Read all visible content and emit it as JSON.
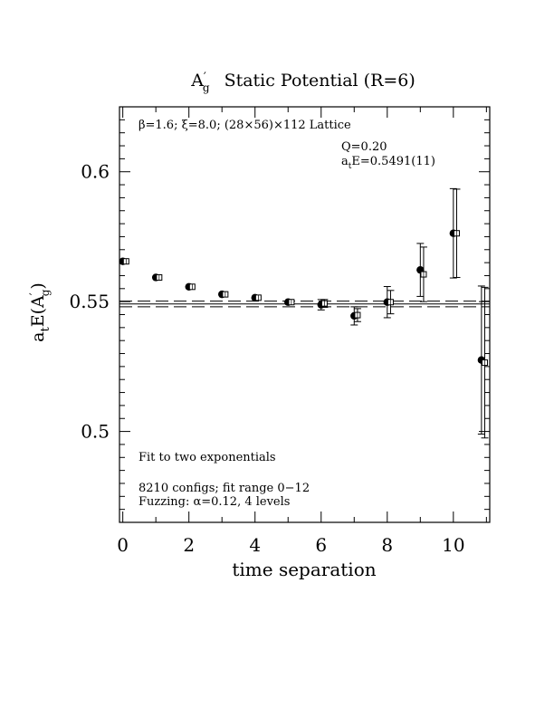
{
  "chart_data": {
    "type": "scatter",
    "title": {
      "prefix": "A",
      "prime": "′",
      "sub": "g",
      "suffix": "Static Potential (R=6)"
    },
    "xlabel": "time separation",
    "ylabel": {
      "a": "a",
      "a_sub": "t",
      "mid": "E(A",
      "prime": "′",
      "g_sub": "g",
      "close": ")"
    },
    "xlim": [
      -0.1,
      11.1
    ],
    "ylim": [
      0.465,
      0.625
    ],
    "x_ticks": [
      0,
      2,
      4,
      6,
      8,
      10
    ],
    "x_tick_labels": [
      "0",
      "2",
      "4",
      "6",
      "8",
      "10"
    ],
    "y_ticks": [
      0.5,
      0.55,
      0.6
    ],
    "y_tick_labels": [
      "0.5",
      "0.55",
      "0.6"
    ],
    "annotations": {
      "lattice": "β=1.6; ξ=8.0; (28×56)×112 Lattice",
      "q": "Q=0.20",
      "energy_a": "a",
      "energy_sub": "t",
      "energy_rest": "E=0.5491(11)",
      "fit": "Fit to two exponentials",
      "configs": "8210 configs; fit range 0−12",
      "fuzzing": "Fuzzing: α=0.12, 4 levels"
    },
    "fit_line": {
      "value": 0.5491,
      "error": 0.0011
    },
    "series": [
      {
        "marker": "filled-circle",
        "points": [
          {
            "x": 0,
            "y": 0.5655,
            "err": 0.0
          },
          {
            "x": 1,
            "y": 0.5593,
            "err": 0.0
          },
          {
            "x": 2,
            "y": 0.5557,
            "err": 0.0
          },
          {
            "x": 3,
            "y": 0.5528,
            "err": 0.0
          },
          {
            "x": 4,
            "y": 0.5515,
            "err": 0.0
          },
          {
            "x": 5,
            "y": 0.5498,
            "err": 0.0
          },
          {
            "x": 6,
            "y": 0.5488,
            "err": 0.002
          },
          {
            "x": 7,
            "y": 0.5445,
            "err": 0.0035
          },
          {
            "x": 8,
            "y": 0.5498,
            "err": 0.006
          },
          {
            "x": 9,
            "y": 0.5622,
            "err": 0.0102
          },
          {
            "x": 10,
            "y": 0.5763,
            "err": 0.0172
          },
          {
            "x": 10.85,
            "y": 0.5275,
            "err": 0.0285
          }
        ]
      },
      {
        "marker": "open-square",
        "points": [
          {
            "x": 0.1,
            "y": 0.5655,
            "err": 0.0
          },
          {
            "x": 1.1,
            "y": 0.5593,
            "err": 0.0
          },
          {
            "x": 2.1,
            "y": 0.5557,
            "err": 0.0
          },
          {
            "x": 3.1,
            "y": 0.5528,
            "err": 0.0
          },
          {
            "x": 4.1,
            "y": 0.5515,
            "err": 0.0
          },
          {
            "x": 5.1,
            "y": 0.5498,
            "err": 0.0
          },
          {
            "x": 6.1,
            "y": 0.5493,
            "err": 0.0015
          },
          {
            "x": 7.1,
            "y": 0.5448,
            "err": 0.0025
          },
          {
            "x": 8.1,
            "y": 0.5498,
            "err": 0.0045
          },
          {
            "x": 9.1,
            "y": 0.5605,
            "err": 0.0105
          },
          {
            "x": 10.1,
            "y": 0.5763,
            "err": 0.017
          },
          {
            "x": 10.95,
            "y": 0.5265,
            "err": 0.029
          }
        ]
      }
    ]
  }
}
